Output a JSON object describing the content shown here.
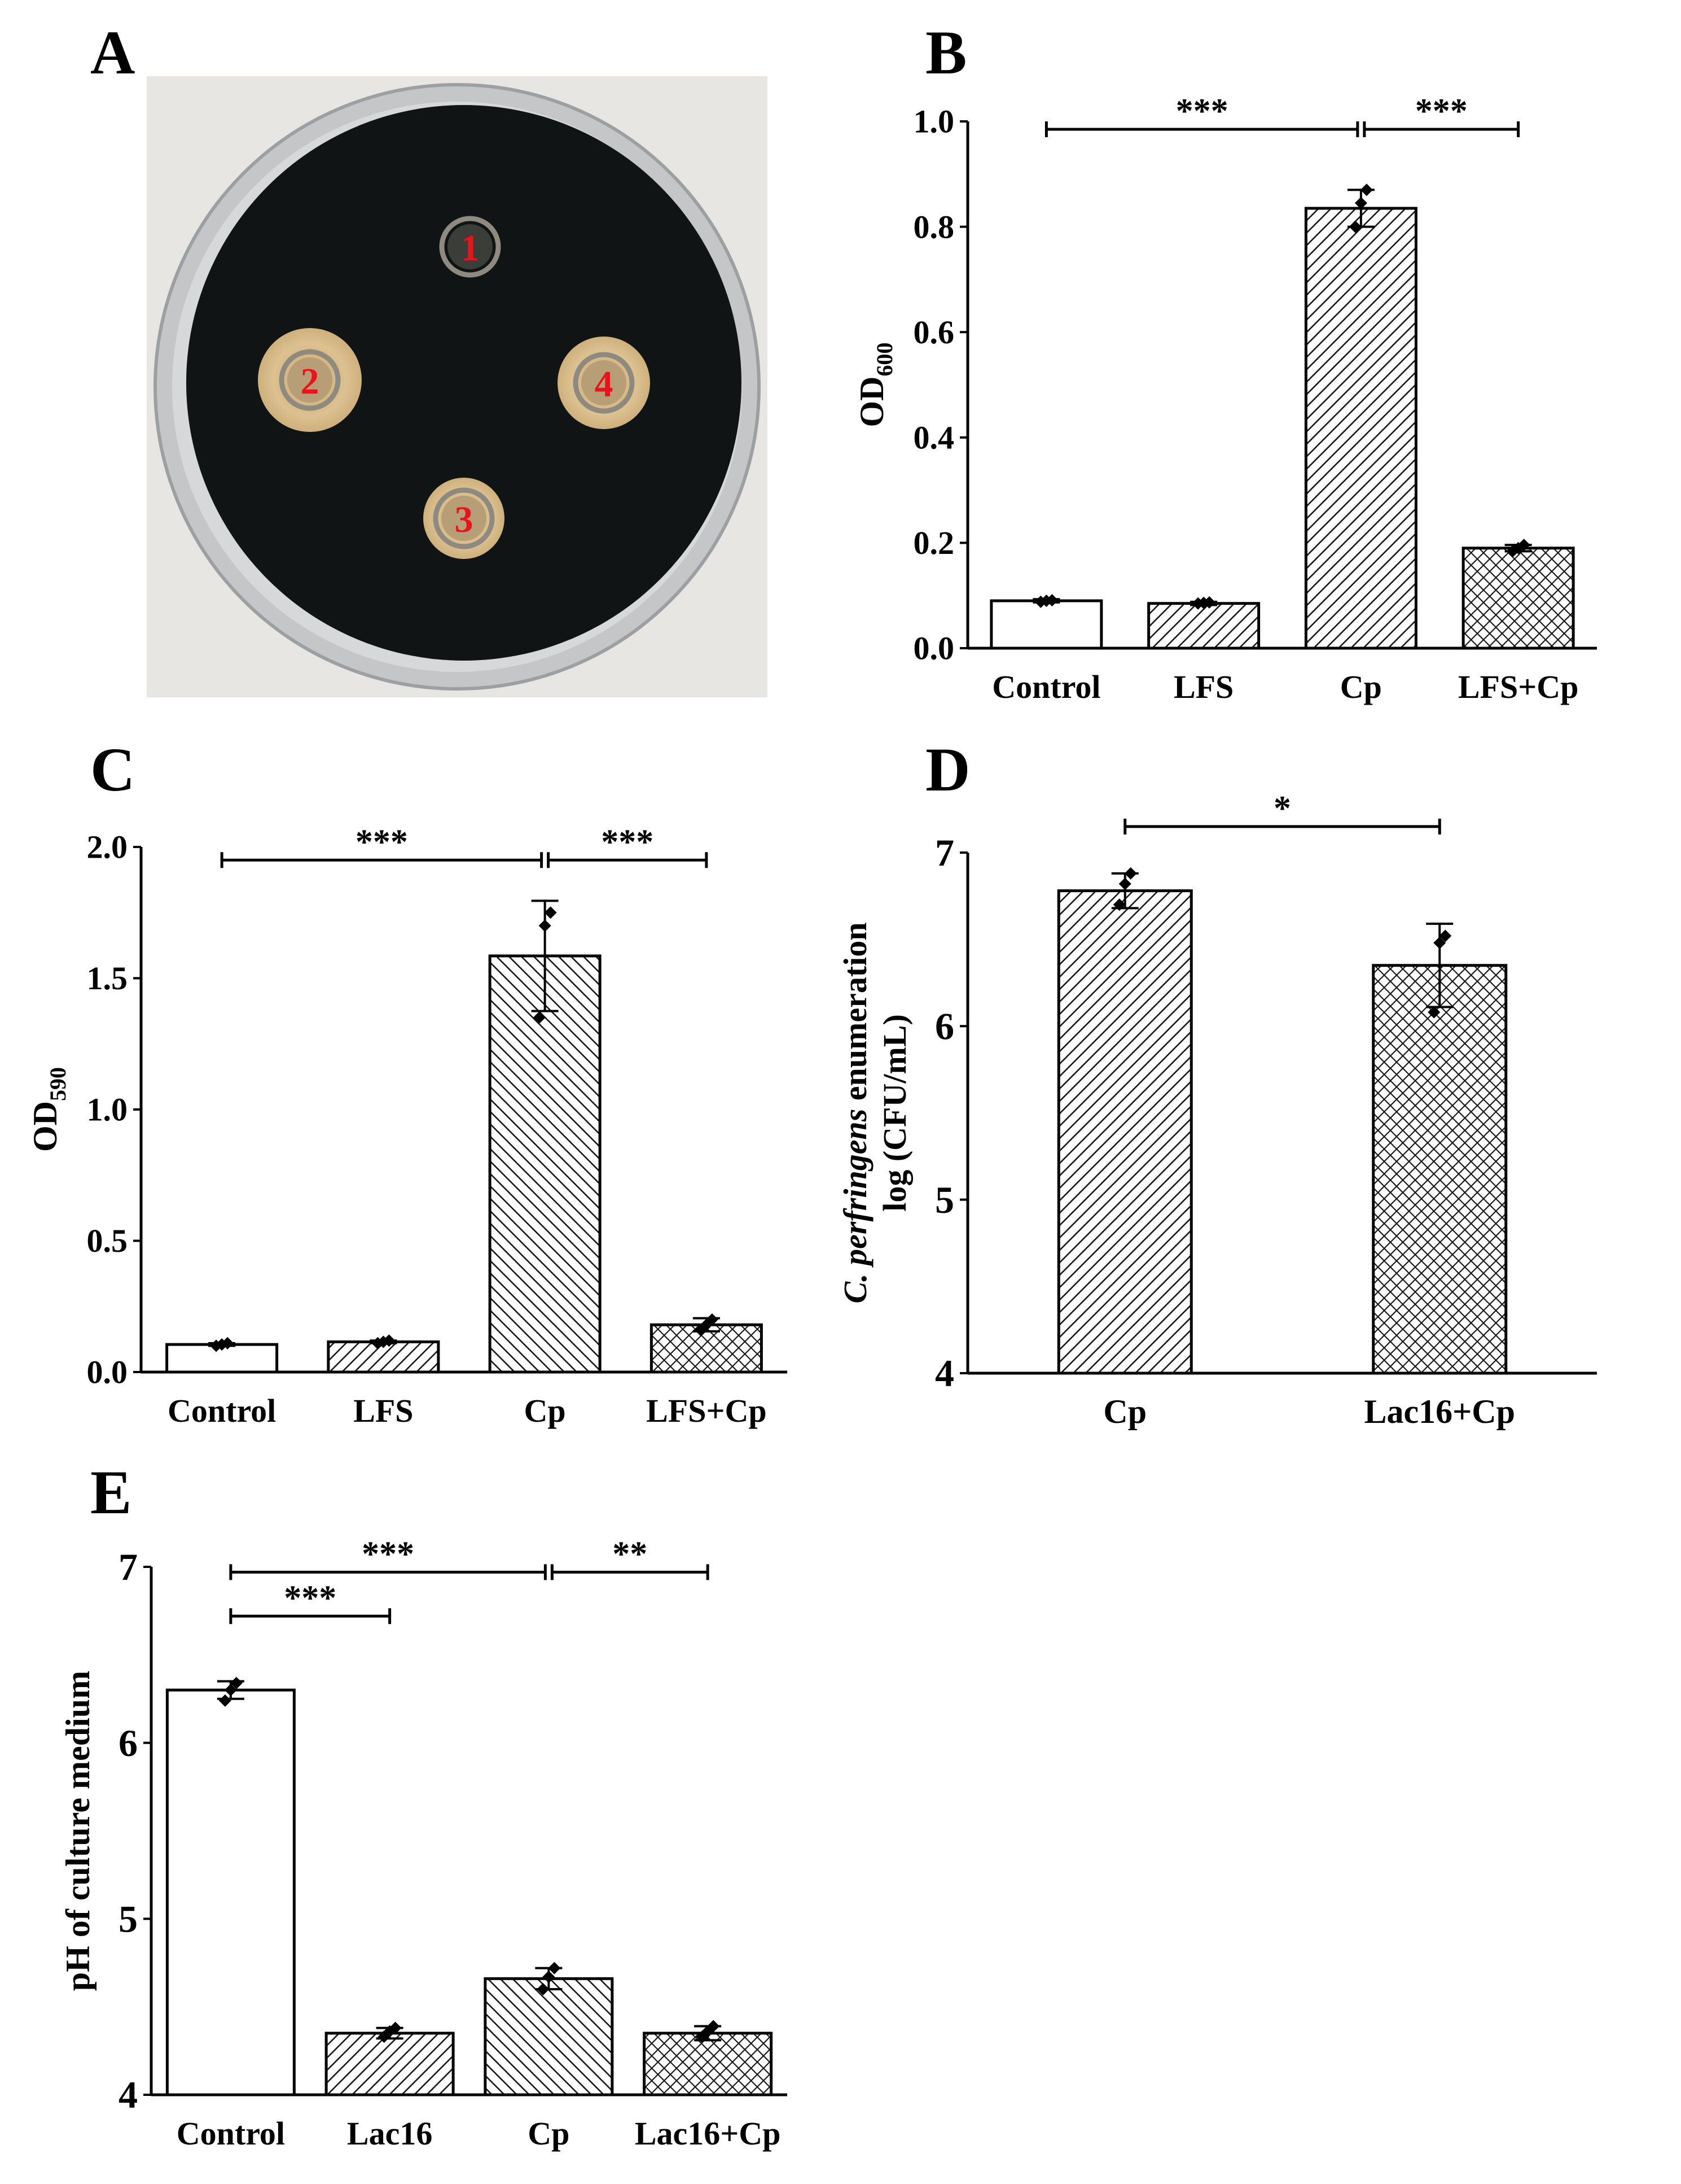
{
  "panel_labels": [
    "A",
    "B",
    "C",
    "D",
    "E"
  ],
  "petri": {
    "wells": [
      {
        "label": "1",
        "zone": "none"
      },
      {
        "label": "2",
        "zone": "large"
      },
      {
        "label": "3",
        "zone": "medium"
      },
      {
        "label": "4",
        "zone": "medium"
      }
    ],
    "colors": {
      "background": "#e7e6e3",
      "dish_rim": "#b9bcbe",
      "agar": "#101415",
      "zone": "#d6b98a",
      "label": "#e8131b"
    }
  },
  "chart_data": [
    {
      "panel": "B",
      "type": "bar",
      "categories": [
        "Control",
        "LFS",
        "Cp",
        "LFS+Cp"
      ],
      "values": [
        0.09,
        0.085,
        0.835,
        0.19
      ],
      "errors": [
        0.003,
        0.003,
        0.035,
        0.006
      ],
      "points": [
        [
          0.088,
          0.09,
          0.091
        ],
        [
          0.085,
          0.086,
          0.087
        ],
        [
          0.8,
          0.845,
          0.87
        ],
        [
          0.184,
          0.19,
          0.196
        ]
      ],
      "patterns": [
        "none",
        "diag",
        "diag",
        "cross"
      ],
      "ylabel": "OD",
      "ylabel_sub": "600",
      "ylim": [
        0,
        1.0
      ],
      "yticks": [
        0.0,
        0.2,
        0.4,
        0.6,
        0.8,
        1.0
      ],
      "tick_decimals": 1,
      "significance": [
        {
          "from": 0,
          "to": 2,
          "label": "***",
          "y": 0.985
        },
        {
          "from": 2,
          "to": 3,
          "label": "***",
          "y": 0.985
        }
      ]
    },
    {
      "panel": "C",
      "type": "bar",
      "categories": [
        "Control",
        "LFS",
        "Cp",
        "LFS+Cp"
      ],
      "values": [
        0.105,
        0.115,
        1.585,
        0.18
      ],
      "errors": [
        0.005,
        0.005,
        0.21,
        0.025
      ],
      "points": [
        [
          0.1,
          0.105,
          0.11
        ],
        [
          0.11,
          0.115,
          0.12
        ],
        [
          1.35,
          1.7,
          1.75
        ],
        [
          0.16,
          0.18,
          0.2
        ]
      ],
      "patterns": [
        "none",
        "diag",
        "diag-back",
        "cross"
      ],
      "ylabel": "OD",
      "ylabel_sub": "590",
      "ylim": [
        0,
        2.0
      ],
      "yticks": [
        0.0,
        0.5,
        1.0,
        1.5,
        2.0
      ],
      "tick_decimals": 1,
      "significance": [
        {
          "from": 0,
          "to": 2,
          "label": "***",
          "y": 1.95
        },
        {
          "from": 2,
          "to": 3,
          "label": "***",
          "y": 1.95
        }
      ]
    },
    {
      "panel": "D",
      "type": "bar",
      "categories": [
        "Cp",
        "Lac16+Cp"
      ],
      "values": [
        6.78,
        6.35
      ],
      "errors": [
        0.1,
        0.24
      ],
      "points": [
        [
          6.7,
          6.82,
          6.88
        ],
        [
          6.08,
          6.48,
          6.52
        ]
      ],
      "patterns": [
        "diag",
        "cross"
      ],
      "ylabel_italic": "C. perfringens",
      "ylabel_rest": " enumeration",
      "ylabel_line2": "log (CFU/mL)",
      "ylim": [
        4,
        7
      ],
      "yticks": [
        4,
        5,
        6,
        7
      ],
      "tick_decimals": 0,
      "significance": [
        {
          "from": 0,
          "to": 1,
          "label": "*",
          "y": 7.15
        }
      ]
    },
    {
      "panel": "E",
      "type": "bar",
      "categories": [
        "Control",
        "Lac16",
        "Cp",
        "Lac16+Cp"
      ],
      "values": [
        6.3,
        4.35,
        4.66,
        4.35
      ],
      "errors": [
        0.05,
        0.03,
        0.06,
        0.04
      ],
      "points": [
        [
          6.24,
          6.3,
          6.34
        ],
        [
          4.33,
          4.36,
          4.38
        ],
        [
          4.6,
          4.67,
          4.72
        ],
        [
          4.33,
          4.36,
          4.39
        ]
      ],
      "patterns": [
        "none",
        "diag",
        "diag-back",
        "cross"
      ],
      "ylabel": "pH of culture medium",
      "ylim": [
        4,
        7
      ],
      "yticks": [
        4,
        5,
        6,
        7
      ],
      "tick_decimals": 0,
      "significance": [
        {
          "from": 0,
          "to": 2,
          "label": "***",
          "y": 6.97
        },
        {
          "from": 2,
          "to": 3,
          "label": "**",
          "y": 6.97
        },
        {
          "from": 0,
          "to": 1,
          "label": "***",
          "y": 6.72
        }
      ]
    }
  ]
}
